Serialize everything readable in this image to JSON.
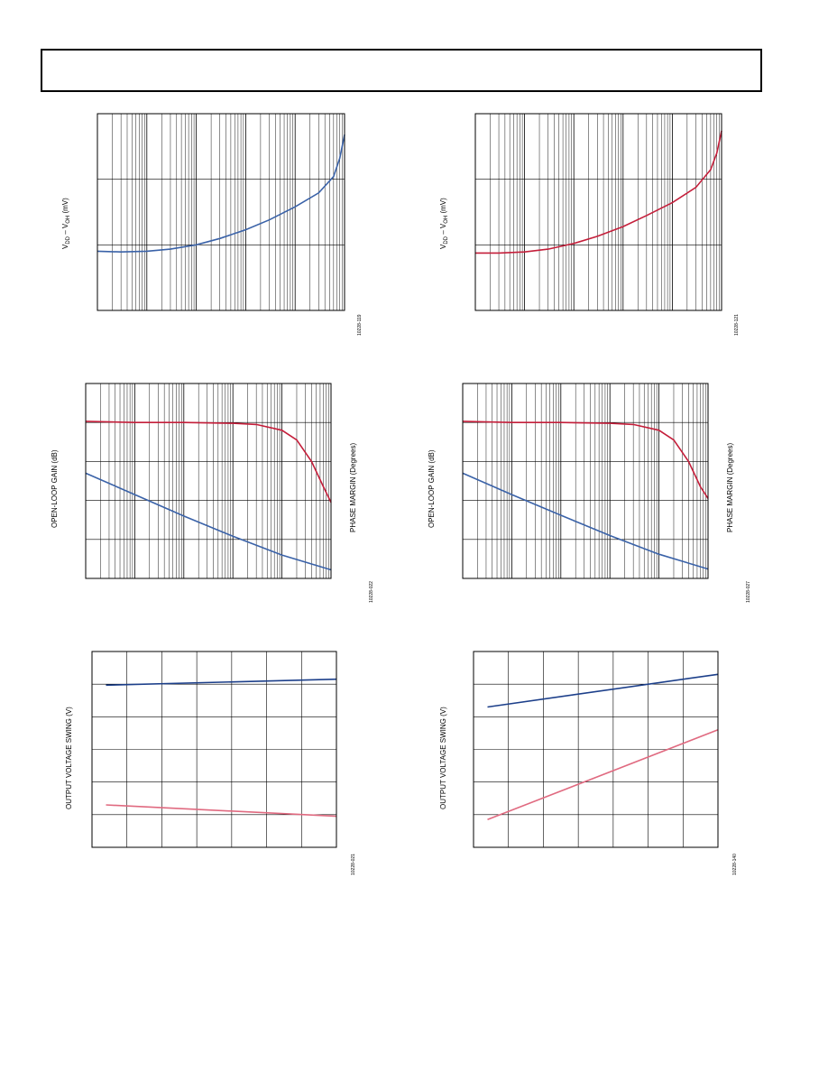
{
  "header": {},
  "charts": [
    {
      "id": "c1",
      "ylabel_parts": [
        "V",
        "DD",
        " – V",
        "OH",
        " (mV)"
      ],
      "fig_id": "10228-119"
    },
    {
      "id": "c2",
      "ylabel_parts": [
        "V",
        "DD",
        " – V",
        "OH",
        " (mV)"
      ],
      "fig_id": "10228-121"
    },
    {
      "id": "c3",
      "ylabel": "OPEN-LOOP GAIN (dB)",
      "y2label": "PHASE MARGIN (Degrees)",
      "fig_id": "10228-022"
    },
    {
      "id": "c4",
      "ylabel": "OPEN-LOOP GAIN (dB)",
      "y2label": "PHASE MARGIN (Degrees)",
      "fig_id": "10228-027"
    },
    {
      "id": "c5",
      "ylabel": "OUTPUT VOLTAGE SWING (V)",
      "fig_id": "10228-021"
    },
    {
      "id": "c6",
      "ylabel": "OUTPUT VOLTAGE SWING (V)",
      "fig_id": "10228-140"
    }
  ],
  "chart_data": [
    {
      "type": "line",
      "xscale": "log",
      "xlim": [
        0.001,
        100
      ],
      "ylim": [
        1,
        1000
      ],
      "yscale": "log",
      "grid": true,
      "series": [
        {
          "color": "#3a62a8",
          "x": [
            0.001,
            0.003,
            0.01,
            0.03,
            0.1,
            0.3,
            1,
            3,
            10,
            30,
            60,
            80,
            100
          ],
          "y": [
            8,
            7.8,
            8,
            8.6,
            10,
            12.5,
            17,
            24,
            38,
            62,
            110,
            210,
            480
          ]
        }
      ]
    },
    {
      "type": "line",
      "xscale": "log",
      "xlim": [
        0.001,
        100
      ],
      "ylim": [
        1,
        1000
      ],
      "yscale": "log",
      "grid": true,
      "series": [
        {
          "color": "#c41e3a",
          "x": [
            0.001,
            0.003,
            0.01,
            0.03,
            0.1,
            0.3,
            1,
            3,
            10,
            30,
            60,
            80,
            100
          ],
          "y": [
            7.5,
            7.5,
            7.8,
            8.6,
            10.5,
            13.5,
            19,
            28,
            44,
            75,
            140,
            250,
            550
          ]
        }
      ]
    },
    {
      "type": "line",
      "xscale": "log",
      "xlim": [
        1,
        100000
      ],
      "ylim": [
        0,
        5
      ],
      "grid": true,
      "series": [
        {
          "color": "#c41e3a",
          "x": [
            1,
            10,
            100,
            1000,
            3000,
            10000,
            20000,
            40000,
            70000,
            100000
          ],
          "y": [
            4.03,
            4.0,
            4.0,
            3.98,
            3.95,
            3.8,
            3.55,
            3.0,
            2.35,
            1.95
          ]
        },
        {
          "color": "#3a62a8",
          "x": [
            1,
            10,
            100,
            1000,
            10000,
            100000
          ],
          "y": [
            2.7,
            2.15,
            1.6,
            1.08,
            0.6,
            0.22
          ]
        }
      ]
    },
    {
      "type": "line",
      "xscale": "log",
      "xlim": [
        1,
        100000
      ],
      "ylim": [
        0,
        5
      ],
      "grid": true,
      "series": [
        {
          "color": "#c41e3a",
          "x": [
            1,
            10,
            100,
            1000,
            3000,
            10000,
            20000,
            40000,
            70000,
            100000
          ],
          "y": [
            4.03,
            4.0,
            4.0,
            3.98,
            3.95,
            3.8,
            3.55,
            3.0,
            2.35,
            2.05
          ]
        },
        {
          "color": "#3a62a8",
          "x": [
            1,
            10,
            100,
            1000,
            10000,
            100000
          ],
          "y": [
            2.7,
            2.15,
            1.62,
            1.1,
            0.62,
            0.24
          ]
        }
      ]
    },
    {
      "type": "line",
      "xlim": [
        0,
        7
      ],
      "ylim": [
        0,
        6
      ],
      "grid": true,
      "series": [
        {
          "color": "#1c3f8a",
          "x": [
            0.4,
            7
          ],
          "y": [
            4.97,
            5.15
          ]
        },
        {
          "color": "#e06a80",
          "x": [
            0.4,
            7
          ],
          "y": [
            1.3,
            0.95
          ]
        }
      ]
    },
    {
      "type": "line",
      "xlim": [
        0,
        7
      ],
      "ylim": [
        0,
        6
      ],
      "grid": true,
      "series": [
        {
          "color": "#1c3f8a",
          "x": [
            0.4,
            7
          ],
          "y": [
            4.3,
            5.3
          ]
        },
        {
          "color": "#e06a80",
          "x": [
            0.4,
            7
          ],
          "y": [
            0.85,
            3.6
          ]
        }
      ]
    }
  ]
}
